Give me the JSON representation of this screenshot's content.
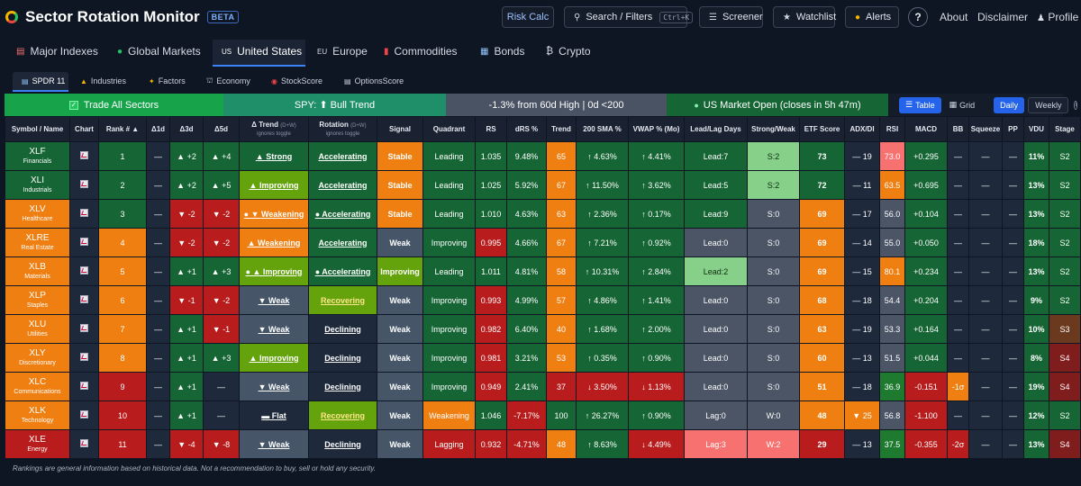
{
  "app": {
    "title": "Sector Rotation Monitor",
    "badge": "BETA"
  },
  "topbar": {
    "risk_calc": "Risk Calc",
    "search_label": "Search / Filters",
    "search_shortcut": "Ctrl+K",
    "screener": "Screener",
    "watchlist": "Watchlist",
    "alerts": "Alerts",
    "help": "?",
    "about": "About",
    "disclaimer": "Disclaimer",
    "profile": "Profile"
  },
  "nav": {
    "items": [
      {
        "label": "Major Indexes",
        "icon": "chart-icon"
      },
      {
        "label": "Global Markets",
        "icon": "globe-icon"
      },
      {
        "label": "United States",
        "prefix": "US",
        "active": true
      },
      {
        "label": "Europe",
        "prefix": "EU"
      },
      {
        "label": "Commodities",
        "icon": "barrel-icon"
      },
      {
        "label": "Bonds",
        "icon": "bond-icon"
      },
      {
        "label": "Crypto",
        "prefix": "₿"
      }
    ]
  },
  "subnav": {
    "items": [
      {
        "label": "SPDR 11",
        "active": true
      },
      {
        "label": "Industries"
      },
      {
        "label": "Factors"
      },
      {
        "label": "Economy"
      },
      {
        "label": "StockScore"
      },
      {
        "label": "OptionsScore"
      }
    ]
  },
  "status": {
    "trade_all": "Trade All Sectors",
    "spy_trend": "SPY: ⬆ Bull Trend",
    "from_high": "-1.3% from 60d High | 0d <200",
    "market": "US Market Open (closes in 5h 47m)",
    "view_table": "Table",
    "view_grid": "Grid",
    "period_daily": "Daily",
    "period_weekly": "Weekly",
    "info": "i"
  },
  "columns": [
    {
      "label": "Symbol / Name"
    },
    {
      "label": "Chart"
    },
    {
      "label": "Rank # ▲"
    },
    {
      "label": "Δ1d"
    },
    {
      "label": "Δ3d"
    },
    {
      "label": "Δ5d"
    },
    {
      "label": "Δ Trend",
      "hint": "(D+W)",
      "sub": "ignores toggle"
    },
    {
      "label": "Rotation",
      "hint": "(D+W)",
      "sub": "ignores toggle"
    },
    {
      "label": "Signal"
    },
    {
      "label": "Quadrant"
    },
    {
      "label": "RS"
    },
    {
      "label": "dRS %"
    },
    {
      "label": "Trend"
    },
    {
      "label": "200 SMA %"
    },
    {
      "label": "VWAP % (Mo)"
    },
    {
      "label": "Lead/Lag Days"
    },
    {
      "label": "Strong/Weak"
    },
    {
      "label": "ETF Score"
    },
    {
      "label": "ADX/DI"
    },
    {
      "label": "RSI"
    },
    {
      "label": "MACD"
    },
    {
      "label": "BB"
    },
    {
      "label": "Squeeze"
    },
    {
      "label": "PP"
    },
    {
      "label": "VDU"
    },
    {
      "label": "Stage"
    },
    {
      "label": "U"
    }
  ],
  "rows": [
    {
      "sym": "XLF",
      "name": "Financials",
      "rank": "1",
      "d1": "—",
      "d3": "▲ +2",
      "d5": "▲ +4",
      "trend": "▲ Strong",
      "rot": "Accelerating",
      "signal": "Stable",
      "quad": "Leading",
      "rs": "1.035",
      "drs": "9.48%",
      "tr": "65",
      "sma": "↑ 4.63%",
      "vwap": "↑ 4.41%",
      "ll": "Lead:7",
      "sw": "S:2",
      "score": "73",
      "adx": "— 19",
      "rsi": "73.0",
      "macd": "+0.295",
      "bb": "—",
      "sq": "—",
      "pp": "—",
      "vdu": "11%",
      "stage": "S2",
      "u": "—"
    },
    {
      "sym": "XLI",
      "name": "Industrials",
      "rank": "2",
      "d1": "—",
      "d3": "▲ +2",
      "d5": "▲ +5",
      "trend": "▲ Improving",
      "rot": "Accelerating",
      "signal": "Stable",
      "quad": "Leading",
      "rs": "1.025",
      "drs": "5.92%",
      "tr": "67",
      "sma": "↑ 11.50%",
      "vwap": "↑ 3.62%",
      "ll": "Lead:5",
      "sw": "S:2",
      "score": "72",
      "adx": "— 11",
      "rsi": "63.5",
      "macd": "+0.695",
      "bb": "—",
      "sq": "—",
      "pp": "—",
      "vdu": "13%",
      "stage": "S2",
      "u": "—"
    },
    {
      "sym": "XLV",
      "name": "Healthcare",
      "rank": "3",
      "d1": "—",
      "d3": "▼ -2",
      "d5": "▼ -2",
      "trend": "● ▼ Weakening",
      "rot": "● Accelerating",
      "signal": "Stable",
      "quad": "Leading",
      "rs": "1.010",
      "drs": "4.63%",
      "tr": "63",
      "sma": "↑ 2.36%",
      "vwap": "↑ 0.17%",
      "ll": "Lead:9",
      "sw": "S:0",
      "score": "69",
      "adx": "— 17",
      "rsi": "56.0",
      "macd": "+0.104",
      "bb": "—",
      "sq": "—",
      "pp": "—",
      "vdu": "13%",
      "stage": "S2",
      "u": "—"
    },
    {
      "sym": "XLRE",
      "name": "Real Estate",
      "rank": "4",
      "d1": "—",
      "d3": "▼ -2",
      "d5": "▼ -2",
      "trend": "▲ Weakening",
      "rot": "Accelerating",
      "signal": "Weak",
      "quad": "Improving",
      "rs": "0.995",
      "drs": "4.66%",
      "tr": "67",
      "sma": "↑ 7.21%",
      "vwap": "↑ 0.92%",
      "ll": "Lead:0",
      "sw": "S:0",
      "score": "69",
      "adx": "— 14",
      "rsi": "55.0",
      "macd": "+0.050",
      "bb": "—",
      "sq": "—",
      "pp": "—",
      "vdu": "18%",
      "stage": "S2",
      "u": "—"
    },
    {
      "sym": "XLB",
      "name": "Materials",
      "rank": "5",
      "d1": "—",
      "d3": "▲ +1",
      "d5": "▲ +3",
      "trend": "● ▲ Improving",
      "rot": "● Accelerating",
      "signal": "Improving",
      "quad": "Leading",
      "rs": "1.011",
      "drs": "4.81%",
      "tr": "58",
      "sma": "↑ 10.31%",
      "vwap": "↑ 2.84%",
      "ll": "Lead:2",
      "sw": "S:0",
      "score": "69",
      "adx": "— 15",
      "rsi": "80.1",
      "macd": "+0.234",
      "bb": "—",
      "sq": "—",
      "pp": "—",
      "vdu": "13%",
      "stage": "S2",
      "u": "—"
    },
    {
      "sym": "XLP",
      "name": "Staples",
      "rank": "6",
      "d1": "—",
      "d3": "▼ -1",
      "d5": "▼ -2",
      "trend": "▼ Weak",
      "rot": "Recovering",
      "signal": "Weak",
      "quad": "Improving",
      "rs": "0.993",
      "drs": "4.99%",
      "tr": "57",
      "sma": "↑ 4.86%",
      "vwap": "↑ 1.41%",
      "ll": "Lead:0",
      "sw": "S:0",
      "score": "68",
      "adx": "— 18",
      "rsi": "54.4",
      "macd": "+0.204",
      "bb": "—",
      "sq": "—",
      "pp": "—",
      "vdu": "9%",
      "stage": "S2",
      "u": "—"
    },
    {
      "sym": "XLU",
      "name": "Utilities",
      "rank": "7",
      "d1": "—",
      "d3": "▲ +1",
      "d5": "▼ -1",
      "trend": "▼ Weak",
      "rot": "Declining",
      "signal": "Weak",
      "quad": "Improving",
      "rs": "0.982",
      "drs": "6.40%",
      "tr": "40",
      "sma": "↑ 1.68%",
      "vwap": "↑ 2.00%",
      "ll": "Lead:0",
      "sw": "S:0",
      "score": "63",
      "adx": "— 19",
      "rsi": "53.3",
      "macd": "+0.164",
      "bb": "—",
      "sq": "—",
      "pp": "—",
      "vdu": "10%",
      "stage": "S3",
      "u": "—"
    },
    {
      "sym": "XLY",
      "name": "Discretionary",
      "rank": "8",
      "d1": "—",
      "d3": "▲ +1",
      "d5": "▲ +3",
      "trend": "▲ Improving",
      "rot": "Declining",
      "signal": "Weak",
      "quad": "Improving",
      "rs": "0.981",
      "drs": "3.21%",
      "tr": "53",
      "sma": "↑ 0.35%",
      "vwap": "↑ 0.90%",
      "ll": "Lead:0",
      "sw": "S:0",
      "score": "60",
      "adx": "— 13",
      "rsi": "51.5",
      "macd": "+0.044",
      "bb": "—",
      "sq": "—",
      "pp": "—",
      "vdu": "8%",
      "stage": "S4",
      "u": "—"
    },
    {
      "sym": "XLC",
      "name": "Communications",
      "rank": "9",
      "d1": "—",
      "d3": "▲ +1",
      "d5": "—",
      "trend": "▼ Weak",
      "rot": "Declining",
      "signal": "Weak",
      "quad": "Improving",
      "rs": "0.949",
      "drs": "2.41%",
      "tr": "37",
      "sma": "↓ 3.50%",
      "vwap": "↓ 1.13%",
      "ll": "Lead:0",
      "sw": "S:0",
      "score": "51",
      "adx": "— 18",
      "rsi": "36.9",
      "macd": "-0.151",
      "bb": "-1σ",
      "sq": "—",
      "pp": "—",
      "vdu": "19%",
      "stage": "S4",
      "u": "—"
    },
    {
      "sym": "XLK",
      "name": "Technology",
      "rank": "10",
      "d1": "—",
      "d3": "▲ +1",
      "d5": "—",
      "trend": "▬ Flat",
      "rot": "Recovering",
      "signal": "Weak",
      "quad": "Weakening",
      "rs": "1.046",
      "drs": "-7.17%",
      "tr": "100",
      "sma": "↑ 26.27%",
      "vwap": "↑ 0.90%",
      "ll": "Lag:0",
      "sw": "W:0",
      "score": "48",
      "adx": "▼ 25",
      "rsi": "56.8",
      "macd": "-1.100",
      "bb": "—",
      "sq": "—",
      "pp": "—",
      "vdu": "12%",
      "stage": "S2",
      "u": "—"
    },
    {
      "sym": "XLE",
      "name": "Energy",
      "rank": "11",
      "d1": "—",
      "d3": "▼ -4",
      "d5": "▼ -8",
      "trend": "▼ Weak",
      "rot": "Declining",
      "signal": "Weak",
      "quad": "Lagging",
      "rs": "0.932",
      "drs": "-4.71%",
      "tr": "48",
      "sma": "↑ 8.63%",
      "vwap": "↓ 4.49%",
      "ll": "Lag:3",
      "sw": "W:2",
      "score": "29",
      "adx": "— 13",
      "rsi": "37.5",
      "macd": "-0.355",
      "bb": "-2σ",
      "sq": "—",
      "pp": "—",
      "vdu": "13%",
      "stage": "S4",
      "u": "—"
    }
  ],
  "footer": "Rankings are general information based on historical data. Not a recommendation to buy, sell or hold any security."
}
